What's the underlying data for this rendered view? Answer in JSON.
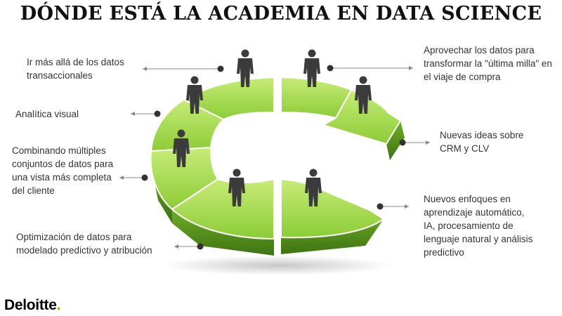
{
  "title": "DÓNDE ESTÁ LA ACADEMIA EN DATA SCIENCE",
  "labels": {
    "transaccionales": "Ir más allá de los datos transaccionales",
    "analitica": "Analítica visual",
    "combinando": "Combinando múltiples conjuntos de datos para una vista más completa del cliente",
    "optimizacion": "Optimización de datos para modelado predictivo y atribución",
    "ultima_milla": "Aprovechar los datos para transformar la \"última milla\" en el viaje de compra",
    "crm_clv": "Nuevas ideas sobre CRM y CLV",
    "enfoques": "Nuevos enfoques en aprendizaje automático, IA, procesamiento de lenguaje natural y análisis predictivo"
  },
  "logo": {
    "text": "Deloitte",
    "dot": "."
  },
  "colors": {
    "segment_top": "#a8dc4a",
    "segment_side": "#5e9a1e",
    "person": "#3b3b3b",
    "arrow": "#888888"
  }
}
